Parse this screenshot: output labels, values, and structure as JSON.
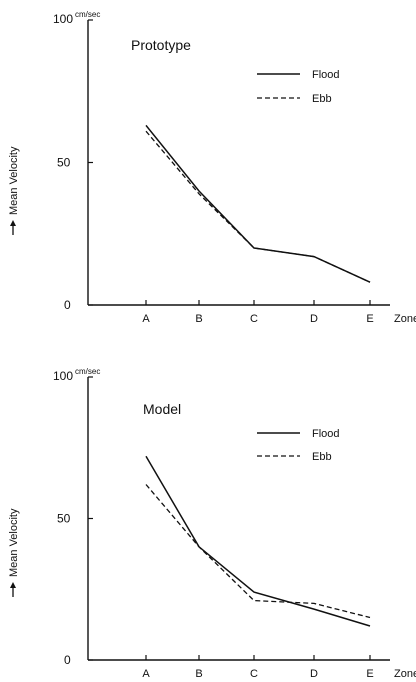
{
  "chart_data": [
    {
      "type": "line",
      "title": "Prototype",
      "ylabel": "Mean Velocity",
      "xlabel": "Zone",
      "yunit": "cm/sec",
      "categories": [
        "A",
        "B",
        "C",
        "D",
        "E"
      ],
      "y_ticks": [
        "0",
        "50",
        "100"
      ],
      "ylim": [
        0,
        100
      ],
      "legend_position": "top-right",
      "series": [
        {
          "name": "Flood",
          "style": "solid",
          "values": [
            63,
            40,
            20,
            17,
            8
          ]
        },
        {
          "name": "Ebb",
          "style": "dashed",
          "values": [
            61,
            39,
            20,
            17,
            8
          ]
        }
      ]
    },
    {
      "type": "line",
      "title": "Model",
      "ylabel": "Mean Velocity",
      "xlabel": "Zone",
      "yunit": "cm/sec",
      "categories": [
        "A",
        "B",
        "C",
        "D",
        "E"
      ],
      "y_ticks": [
        "0",
        "50",
        "100"
      ],
      "ylim": [
        0,
        100
      ],
      "legend_position": "top-right",
      "series": [
        {
          "name": "Flood",
          "style": "solid",
          "values": [
            72,
            40,
            24,
            18,
            12
          ]
        },
        {
          "name": "Ebb",
          "style": "dashed",
          "values": [
            62,
            40,
            21,
            20,
            15
          ]
        }
      ]
    }
  ]
}
